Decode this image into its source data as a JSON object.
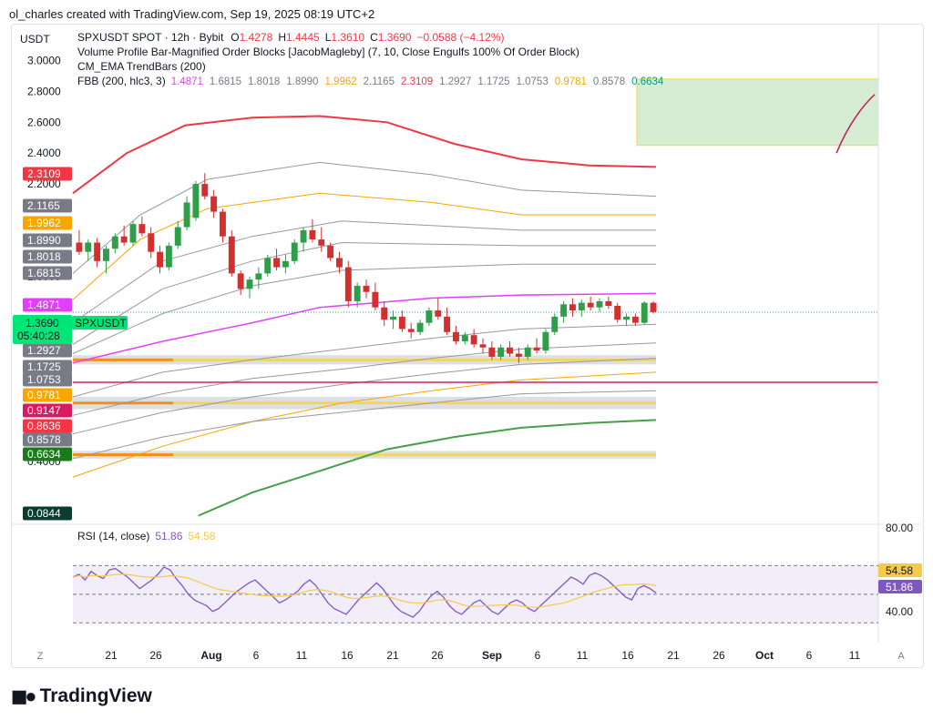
{
  "caption": "ol_charles created with TradingView.com, Sep 19, 2025 08:19 UTC+2",
  "currency": "USDT",
  "footer": "TradingView",
  "legend": {
    "symbol": "SPXUSDT SPOT · 12h · Bybit",
    "ohlc": [
      {
        "k": "O",
        "v": "1.4278"
      },
      {
        "k": "H",
        "v": "1.4445"
      },
      {
        "k": "L",
        "v": "1.3610"
      },
      {
        "k": "C",
        "v": "1.3690"
      }
    ],
    "change": "−0.0588 (−4.12%)",
    "ind1": "Volume Profile Bar-Magnified Order Blocks [JacobMagleby] (7, 10, Close Engulfs 100% Of Order Block)",
    "ind2": "CM_EMA TrendBars (200)",
    "fbb_label": "FBB (200, hlc3, 3)",
    "fbb_values": [
      {
        "v": "1.4871",
        "c": "#e040fb"
      },
      {
        "v": "1.6815",
        "c": "#787b86"
      },
      {
        "v": "1.8018",
        "c": "#787b86"
      },
      {
        "v": "1.8990",
        "c": "#787b86"
      },
      {
        "v": "1.9962",
        "c": "#f7a600"
      },
      {
        "v": "2.1165",
        "c": "#787b86"
      },
      {
        "v": "2.3109",
        "c": "#f23645"
      },
      {
        "v": "1.2927",
        "c": "#787b86"
      },
      {
        "v": "1.1725",
        "c": "#787b86"
      },
      {
        "v": "1.0753",
        "c": "#787b86"
      },
      {
        "v": "0.9781",
        "c": "#f7a600"
      },
      {
        "v": "0.8578",
        "c": "#787b86"
      },
      {
        "v": "0.6634",
        "c": "#089981"
      }
    ]
  },
  "price_axis": [
    "3.0000",
    "2.8000",
    "2.6000",
    "2.4000",
    "2.2000",
    "1.6000",
    "0.4000"
  ],
  "price_tags": [
    {
      "v": "2.3109",
      "bg": "#f23645",
      "fg": "#ffffff"
    },
    {
      "v": "2.1165",
      "bg": "#787b86",
      "fg": "#ffffff"
    },
    {
      "v": "1.9962",
      "bg": "#f7a600",
      "fg": "#ffffff"
    },
    {
      "v": "1.8990",
      "bg": "#787b86",
      "fg": "#ffffff"
    },
    {
      "v": "1.8018",
      "bg": "#787b86",
      "fg": "#ffffff"
    },
    {
      "v": "1.6815",
      "bg": "#787b86",
      "fg": "#ffffff"
    },
    {
      "v": "1.4871",
      "bg": "#e040fb",
      "fg": "#ffffff"
    },
    {
      "v": "1.2927",
      "bg": "#787b86",
      "fg": "#ffffff"
    },
    {
      "v": "1.1725",
      "bg": "#787b86",
      "fg": "#ffffff"
    },
    {
      "v": "1.0753",
      "bg": "#787b86",
      "fg": "#ffffff"
    },
    {
      "v": "0.9781",
      "bg": "#f7a600",
      "fg": "#ffffff"
    },
    {
      "v": "0.9147",
      "bg": "#d81b60",
      "fg": "#ffffff"
    },
    {
      "v": "0.8636",
      "bg": "#f23645",
      "fg": "#ffffff"
    },
    {
      "v": "0.8578",
      "bg": "#787b86",
      "fg": "#ffffff"
    },
    {
      "v": "0.6634",
      "bg": "#1b7a1e",
      "fg": "#ffffff"
    },
    {
      "v": "0.0844",
      "bg": "#0b3d2e",
      "fg": "#ffffff"
    }
  ],
  "current_tag": {
    "price": "1.3690",
    "countdown": "05:40:28",
    "symbol": "SPXUSDT"
  },
  "rsi": {
    "label": "RSI (14, close)",
    "value": "51.86",
    "ma": "54.58",
    "axis": [
      "80.00",
      "40.00"
    ]
  },
  "time_axis": [
    {
      "t": "21",
      "major": false
    },
    {
      "t": "26",
      "major": false
    },
    {
      "t": "Aug",
      "major": true
    },
    {
      "t": "6",
      "major": false
    },
    {
      "t": "11",
      "major": false
    },
    {
      "t": "16",
      "major": false
    },
    {
      "t": "21",
      "major": false
    },
    {
      "t": "26",
      "major": false
    },
    {
      "t": "Sep",
      "major": true
    },
    {
      "t": "6",
      "major": false
    },
    {
      "t": "11",
      "major": false
    },
    {
      "t": "16",
      "major": false
    },
    {
      "t": "21",
      "major": false
    },
    {
      "t": "26",
      "major": false
    },
    {
      "t": "Oct",
      "major": true
    },
    {
      "t": "6",
      "major": false
    },
    {
      "t": "11",
      "major": false
    }
  ],
  "corner_left": "Z",
  "corner_right": "A",
  "chart_data": {
    "type": "candlestick",
    "ylim": [
      0.0,
      3.05
    ],
    "ohlc": [
      [
        1.82,
        1.9,
        1.74,
        1.76
      ],
      [
        1.76,
        1.84,
        1.7,
        1.82
      ],
      [
        1.82,
        1.85,
        1.66,
        1.7
      ],
      [
        1.7,
        1.8,
        1.62,
        1.78
      ],
      [
        1.78,
        1.88,
        1.75,
        1.86
      ],
      [
        1.86,
        1.93,
        1.8,
        1.82
      ],
      [
        1.82,
        1.96,
        1.8,
        1.94
      ],
      [
        1.94,
        1.99,
        1.86,
        1.88
      ],
      [
        1.88,
        1.92,
        1.72,
        1.76
      ],
      [
        1.76,
        1.8,
        1.62,
        1.66
      ],
      [
        1.66,
        1.82,
        1.64,
        1.8
      ],
      [
        1.8,
        1.96,
        1.78,
        1.92
      ],
      [
        1.92,
        2.12,
        1.9,
        2.08
      ],
      [
        1.98,
        2.22,
        1.96,
        2.2
      ],
      [
        2.2,
        2.27,
        2.1,
        2.12
      ],
      [
        2.12,
        2.16,
        1.98,
        2.02
      ],
      [
        2.02,
        2.04,
        1.82,
        1.86
      ],
      [
        1.86,
        1.9,
        1.6,
        1.62
      ],
      [
        1.62,
        1.64,
        1.48,
        1.52
      ],
      [
        1.52,
        1.6,
        1.46,
        1.58
      ],
      [
        1.58,
        1.66,
        1.52,
        1.62
      ],
      [
        1.62,
        1.74,
        1.6,
        1.72
      ],
      [
        1.72,
        1.78,
        1.64,
        1.66
      ],
      [
        1.66,
        1.74,
        1.62,
        1.7
      ],
      [
        1.7,
        1.84,
        1.68,
        1.82
      ],
      [
        1.82,
        1.92,
        1.76,
        1.9
      ],
      [
        1.9,
        1.97,
        1.82,
        1.84
      ],
      [
        1.84,
        1.92,
        1.76,
        1.8
      ],
      [
        1.8,
        1.82,
        1.7,
        1.72
      ],
      [
        1.72,
        1.76,
        1.62,
        1.66
      ],
      [
        1.66,
        1.7,
        1.4,
        1.44
      ],
      [
        1.44,
        1.56,
        1.4,
        1.54
      ],
      [
        1.54,
        1.58,
        1.46,
        1.5
      ],
      [
        1.5,
        1.56,
        1.38,
        1.4
      ],
      [
        1.4,
        1.44,
        1.28,
        1.32
      ],
      [
        1.32,
        1.38,
        1.26,
        1.34
      ],
      [
        1.34,
        1.38,
        1.24,
        1.26
      ],
      [
        1.26,
        1.3,
        1.2,
        1.24
      ],
      [
        1.24,
        1.32,
        1.22,
        1.3
      ],
      [
        1.3,
        1.4,
        1.28,
        1.38
      ],
      [
        1.38,
        1.46,
        1.32,
        1.34
      ],
      [
        1.34,
        1.4,
        1.22,
        1.24
      ],
      [
        1.24,
        1.28,
        1.16,
        1.18
      ],
      [
        1.18,
        1.24,
        1.16,
        1.22
      ],
      [
        1.22,
        1.26,
        1.14,
        1.16
      ],
      [
        1.16,
        1.2,
        1.1,
        1.14
      ],
      [
        1.14,
        1.18,
        1.06,
        1.08
      ],
      [
        1.08,
        1.16,
        1.06,
        1.14
      ],
      [
        1.14,
        1.18,
        1.08,
        1.1
      ],
      [
        1.1,
        1.14,
        1.04,
        1.08
      ],
      [
        1.08,
        1.16,
        1.06,
        1.14
      ],
      [
        1.14,
        1.2,
        1.1,
        1.12
      ],
      [
        1.12,
        1.26,
        1.1,
        1.24
      ],
      [
        1.24,
        1.36,
        1.22,
        1.34
      ],
      [
        1.34,
        1.44,
        1.3,
        1.42
      ],
      [
        1.42,
        1.46,
        1.34,
        1.38
      ],
      [
        1.38,
        1.45,
        1.34,
        1.43
      ],
      [
        1.43,
        1.47,
        1.38,
        1.4
      ],
      [
        1.4,
        1.46,
        1.37,
        1.44
      ],
      [
        1.44,
        1.47,
        1.39,
        1.41
      ],
      [
        1.41,
        1.43,
        1.3,
        1.32
      ],
      [
        1.32,
        1.36,
        1.28,
        1.34
      ],
      [
        1.34,
        1.36,
        1.28,
        1.3
      ],
      [
        1.3,
        1.44,
        1.29,
        1.43
      ],
      [
        1.43,
        1.44,
        1.36,
        1.37
      ]
    ],
    "fbb_bands": [
      {
        "name": "basis",
        "color": "#e040fb",
        "width": 1.5,
        "points": [
          [
            0,
            1.04
          ],
          [
            20,
            1.18
          ],
          [
            40,
            1.3
          ],
          [
            55,
            1.4
          ],
          [
            80,
            1.46
          ],
          [
            100,
            1.48
          ],
          [
            130,
            1.49
          ]
        ]
      },
      {
        "name": "upper 3",
        "color": "#f23645",
        "width": 2,
        "points": [
          [
            0,
            2.14
          ],
          [
            12,
            2.4
          ],
          [
            25,
            2.58
          ],
          [
            40,
            2.63
          ],
          [
            55,
            2.64
          ],
          [
            70,
            2.6
          ],
          [
            85,
            2.46
          ],
          [
            100,
            2.36
          ],
          [
            115,
            2.32
          ],
          [
            130,
            2.31
          ]
        ]
      },
      {
        "name": "upper 2.618",
        "color": "#9598a1",
        "width": 1,
        "points": [
          [
            0,
            1.62
          ],
          [
            15,
            2.0
          ],
          [
            30,
            2.23
          ],
          [
            55,
            2.34
          ],
          [
            80,
            2.26
          ],
          [
            100,
            2.16
          ],
          [
            130,
            2.12
          ]
        ]
      },
      {
        "name": "upper 2.236",
        "color": "#f7a600",
        "width": 1,
        "points": [
          [
            0,
            1.45
          ],
          [
            15,
            1.84
          ],
          [
            30,
            2.04
          ],
          [
            55,
            2.14
          ],
          [
            80,
            2.08
          ],
          [
            100,
            2.0
          ],
          [
            130,
            2.0
          ]
        ]
      },
      {
        "name": "upper 1.618",
        "color": "#9598a1",
        "width": 1,
        "points": [
          [
            0,
            1.3
          ],
          [
            20,
            1.7
          ],
          [
            40,
            1.86
          ],
          [
            60,
            1.96
          ],
          [
            80,
            1.93
          ],
          [
            100,
            1.9
          ],
          [
            130,
            1.9
          ]
        ]
      },
      {
        "name": "upper 1",
        "color": "#9598a1",
        "width": 1,
        "points": [
          [
            0,
            1.16
          ],
          [
            20,
            1.52
          ],
          [
            40,
            1.7
          ],
          [
            60,
            1.82
          ],
          [
            80,
            1.81
          ],
          [
            100,
            1.8
          ],
          [
            130,
            1.8
          ]
        ]
      },
      {
        "name": "upper 0.618",
        "color": "#9598a1",
        "width": 1,
        "points": [
          [
            0,
            1.1
          ],
          [
            20,
            1.36
          ],
          [
            40,
            1.54
          ],
          [
            60,
            1.64
          ],
          [
            80,
            1.66
          ],
          [
            100,
            1.68
          ],
          [
            130,
            1.68
          ]
        ]
      },
      {
        "name": "lower 0.618",
        "color": "#9598a1",
        "width": 1,
        "points": [
          [
            0,
            0.82
          ],
          [
            20,
            0.98
          ],
          [
            40,
            1.06
          ],
          [
            60,
            1.13
          ],
          [
            80,
            1.2
          ],
          [
            100,
            1.26
          ],
          [
            130,
            1.29
          ]
        ]
      },
      {
        "name": "lower 1",
        "color": "#9598a1",
        "width": 1,
        "points": [
          [
            0,
            0.7
          ],
          [
            20,
            0.84
          ],
          [
            40,
            0.94
          ],
          [
            60,
            1.0
          ],
          [
            80,
            1.07
          ],
          [
            100,
            1.13
          ],
          [
            130,
            1.17
          ]
        ]
      },
      {
        "name": "lower 1.618",
        "color": "#9598a1",
        "width": 1,
        "points": [
          [
            0,
            0.58
          ],
          [
            20,
            0.72
          ],
          [
            40,
            0.82
          ],
          [
            60,
            0.9
          ],
          [
            80,
            0.97
          ],
          [
            100,
            1.03
          ],
          [
            130,
            1.07
          ]
        ]
      },
      {
        "name": "lower 2.236",
        "color": "#f7a600",
        "width": 1,
        "points": [
          [
            0,
            0.3
          ],
          [
            20,
            0.5
          ],
          [
            40,
            0.66
          ],
          [
            60,
            0.78
          ],
          [
            80,
            0.86
          ],
          [
            100,
            0.93
          ],
          [
            130,
            0.98
          ]
        ]
      },
      {
        "name": "lower 2.618",
        "color": "#9598a1",
        "width": 1,
        "points": [
          [
            0,
            0.42
          ],
          [
            20,
            0.56
          ],
          [
            40,
            0.66
          ],
          [
            60,
            0.72
          ],
          [
            80,
            0.78
          ],
          [
            100,
            0.84
          ],
          [
            130,
            0.86
          ]
        ]
      },
      {
        "name": "lower 3",
        "color": "#43a047",
        "width": 2,
        "points": [
          [
            28,
            0.05
          ],
          [
            40,
            0.2
          ],
          [
            55,
            0.34
          ],
          [
            70,
            0.48
          ],
          [
            85,
            0.56
          ],
          [
            100,
            0.62
          ],
          [
            115,
            0.65
          ],
          [
            130,
            0.67
          ]
        ]
      }
    ],
    "order_blocks": [
      {
        "top": 1.09,
        "bottom": 1.03,
        "color": "#f7d44a",
        "fill": "#d1d4dc"
      },
      {
        "top": 0.82,
        "bottom": 0.74,
        "color": "#f7d44a",
        "fill": "#d1d4dc"
      },
      {
        "top": 0.47,
        "bottom": 0.42,
        "color": "#f7d44a",
        "fill": "#d1d4dc"
      }
    ],
    "horizontal_line": {
      "value": 0.9147,
      "color": "#d81b60"
    },
    "current_price": 1.369,
    "target_box": {
      "top": 2.88,
      "bottom": 2.45,
      "fill": "#d6ecd3",
      "stroke": "#f2d64c"
    },
    "projection_line": [
      [
        2.4,
        0
      ],
      [
        2.78,
        1
      ]
    ],
    "rsi_values": [
      62,
      64,
      60,
      66,
      63,
      61,
      67,
      68,
      65,
      62,
      58,
      54,
      57,
      60,
      64,
      69,
      67,
      61,
      56,
      50,
      46,
      44,
      42,
      38,
      40,
      44,
      48,
      52,
      55,
      58,
      60,
      56,
      52,
      48,
      44,
      46,
      49,
      52,
      57,
      60,
      56,
      50,
      44,
      40,
      38,
      36,
      41,
      46,
      50,
      54,
      58,
      54,
      48,
      42,
      38,
      36,
      34,
      38,
      44,
      49,
      52,
      48,
      42,
      38,
      36,
      40,
      44,
      46,
      42,
      38,
      36,
      40,
      44,
      46,
      44,
      40,
      38,
      42,
      46,
      50,
      54,
      58,
      62,
      60,
      57,
      63,
      65,
      63,
      60,
      56,
      52,
      48,
      46,
      54,
      56,
      54,
      51
    ]
  }
}
